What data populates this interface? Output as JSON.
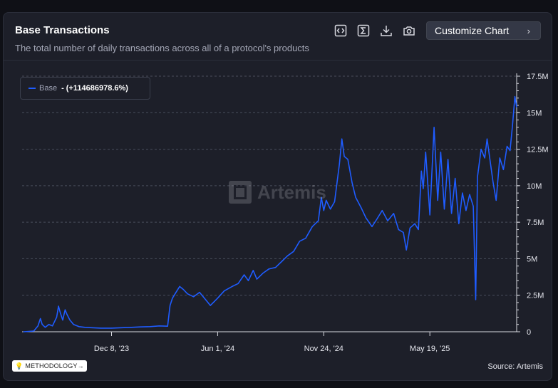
{
  "header": {
    "title": "Base Transactions",
    "subtitle": "The total number of daily transactions across all of a protocol's products",
    "customize_label": "Customize Chart"
  },
  "toolbar": {
    "icons": [
      "embed-code-icon",
      "sigma-icon",
      "download-icon",
      "camera-icon"
    ]
  },
  "legend": {
    "series_name": "Base",
    "change_text": "- (+114686978.6%)",
    "color": "#1f5cff"
  },
  "watermark": "Artemis",
  "footer": {
    "methodology_label": "METHODOLOGY",
    "source_text": "Source: Artemis"
  },
  "chart_data": {
    "type": "line",
    "title": "Base Transactions",
    "xlabel": "",
    "ylabel": "",
    "y_tick_labels": [
      "0",
      "2.5M",
      "5M",
      "7.5M",
      "10M",
      "12.5M",
      "15M",
      "17.5M"
    ],
    "y_ticks": [
      0,
      2500000,
      5000000,
      7500000,
      10000000,
      12500000,
      15000000,
      17500000
    ],
    "ylim": [
      0,
      17500000
    ],
    "y_axis_side": "right",
    "x_tick_labels": [
      "Dec 8, '23",
      "Jun 1, '24",
      "Nov 24, '24",
      "May 19, '25"
    ],
    "x_tick_dates": [
      "2023-12-08",
      "2024-06-01",
      "2024-11-24",
      "2025-05-19"
    ],
    "x_range": [
      "2023-07-15",
      "2025-10-10"
    ],
    "grid": "horizontal dashed",
    "legend_position": "top-left",
    "series": [
      {
        "name": "Base",
        "color": "#1f5cff",
        "points": [
          [
            "2023-07-15",
            0
          ],
          [
            "2023-08-01",
            0.05
          ],
          [
            "2023-08-08",
            0.4
          ],
          [
            "2023-08-12",
            0.9
          ],
          [
            "2023-08-15",
            0.5
          ],
          [
            "2023-08-20",
            0.3
          ],
          [
            "2023-08-26",
            0.5
          ],
          [
            "2023-09-01",
            0.4
          ],
          [
            "2023-09-08",
            1.0
          ],
          [
            "2023-09-11",
            1.75
          ],
          [
            "2023-09-14",
            1.3
          ],
          [
            "2023-09-18",
            0.8
          ],
          [
            "2023-09-22",
            1.5
          ],
          [
            "2023-09-25",
            1.2
          ],
          [
            "2023-09-30",
            0.8
          ],
          [
            "2023-10-06",
            0.5
          ],
          [
            "2023-10-15",
            0.35
          ],
          [
            "2023-10-25",
            0.3
          ],
          [
            "2023-11-05",
            0.28
          ],
          [
            "2023-11-20",
            0.25
          ],
          [
            "2023-12-08",
            0.25
          ],
          [
            "2023-12-25",
            0.28
          ],
          [
            "2024-01-10",
            0.3
          ],
          [
            "2024-01-25",
            0.33
          ],
          [
            "2024-02-10",
            0.35
          ],
          [
            "2024-02-25",
            0.4
          ],
          [
            "2024-03-10",
            0.38
          ],
          [
            "2024-03-14",
            1.8
          ],
          [
            "2024-03-18",
            2.3
          ],
          [
            "2024-03-24",
            2.7
          ],
          [
            "2024-03-30",
            3.1
          ],
          [
            "2024-04-05",
            2.9
          ],
          [
            "2024-04-12",
            2.6
          ],
          [
            "2024-04-22",
            2.4
          ],
          [
            "2024-05-02",
            2.7
          ],
          [
            "2024-05-12",
            2.2
          ],
          [
            "2024-05-20",
            1.8
          ],
          [
            "2024-06-01",
            2.3
          ],
          [
            "2024-06-12",
            2.8
          ],
          [
            "2024-06-25",
            3.1
          ],
          [
            "2024-07-05",
            3.3
          ],
          [
            "2024-07-15",
            3.9
          ],
          [
            "2024-07-22",
            3.5
          ],
          [
            "2024-07-30",
            4.2
          ],
          [
            "2024-08-05",
            3.6
          ],
          [
            "2024-08-15",
            4.0
          ],
          [
            "2024-08-25",
            4.3
          ],
          [
            "2024-09-05",
            4.4
          ],
          [
            "2024-09-15",
            4.8
          ],
          [
            "2024-09-25",
            5.2
          ],
          [
            "2024-10-05",
            5.5
          ],
          [
            "2024-10-15",
            6.2
          ],
          [
            "2024-10-25",
            6.4
          ],
          [
            "2024-11-05",
            7.2
          ],
          [
            "2024-11-15",
            7.6
          ],
          [
            "2024-11-20",
            9.2
          ],
          [
            "2024-11-24",
            8.3
          ],
          [
            "2024-11-28",
            9.0
          ],
          [
            "2024-12-05",
            8.4
          ],
          [
            "2024-12-12",
            8.9
          ],
          [
            "2024-12-20",
            11.5
          ],
          [
            "2024-12-24",
            13.2
          ],
          [
            "2024-12-28",
            12.0
          ],
          [
            "2025-01-03",
            11.8
          ],
          [
            "2025-01-10",
            10.2
          ],
          [
            "2025-01-16",
            9.2
          ],
          [
            "2025-01-25",
            8.5
          ],
          [
            "2025-02-02",
            7.8
          ],
          [
            "2025-02-12",
            7.2
          ],
          [
            "2025-02-20",
            7.7
          ],
          [
            "2025-03-01",
            8.3
          ],
          [
            "2025-03-10",
            7.6
          ],
          [
            "2025-03-20",
            8.1
          ],
          [
            "2025-03-28",
            7.0
          ],
          [
            "2025-04-05",
            6.8
          ],
          [
            "2025-04-10",
            5.6
          ],
          [
            "2025-04-16",
            7.1
          ],
          [
            "2025-04-24",
            7.4
          ],
          [
            "2025-04-30",
            7.0
          ],
          [
            "2025-05-05",
            11.0
          ],
          [
            "2025-05-08",
            9.8
          ],
          [
            "2025-05-12",
            12.3
          ],
          [
            "2025-05-19",
            8.0
          ],
          [
            "2025-05-26",
            14.0
          ],
          [
            "2025-06-01",
            9.0
          ],
          [
            "2025-06-06",
            12.3
          ],
          [
            "2025-06-12",
            8.4
          ],
          [
            "2025-06-18",
            11.8
          ],
          [
            "2025-06-24",
            8.1
          ],
          [
            "2025-06-30",
            10.5
          ],
          [
            "2025-07-06",
            7.4
          ],
          [
            "2025-07-12",
            9.5
          ],
          [
            "2025-07-18",
            8.3
          ],
          [
            "2025-07-24",
            9.4
          ],
          [
            "2025-07-30",
            8.6
          ],
          [
            "2025-08-03",
            2.2
          ],
          [
            "2025-08-06",
            10.6
          ],
          [
            "2025-08-12",
            12.5
          ],
          [
            "2025-08-18",
            11.9
          ],
          [
            "2025-08-22",
            13.2
          ],
          [
            "2025-08-26",
            12.0
          ],
          [
            "2025-09-01",
            10.2
          ],
          [
            "2025-09-06",
            9.0
          ],
          [
            "2025-09-12",
            11.9
          ],
          [
            "2025-09-18",
            11.1
          ],
          [
            "2025-09-24",
            12.7
          ],
          [
            "2025-09-29",
            12.4
          ],
          [
            "2025-10-03",
            14.1
          ],
          [
            "2025-10-07",
            16.1
          ],
          [
            "2025-10-10",
            15.4
          ]
        ],
        "value_unit": "millions"
      }
    ]
  }
}
